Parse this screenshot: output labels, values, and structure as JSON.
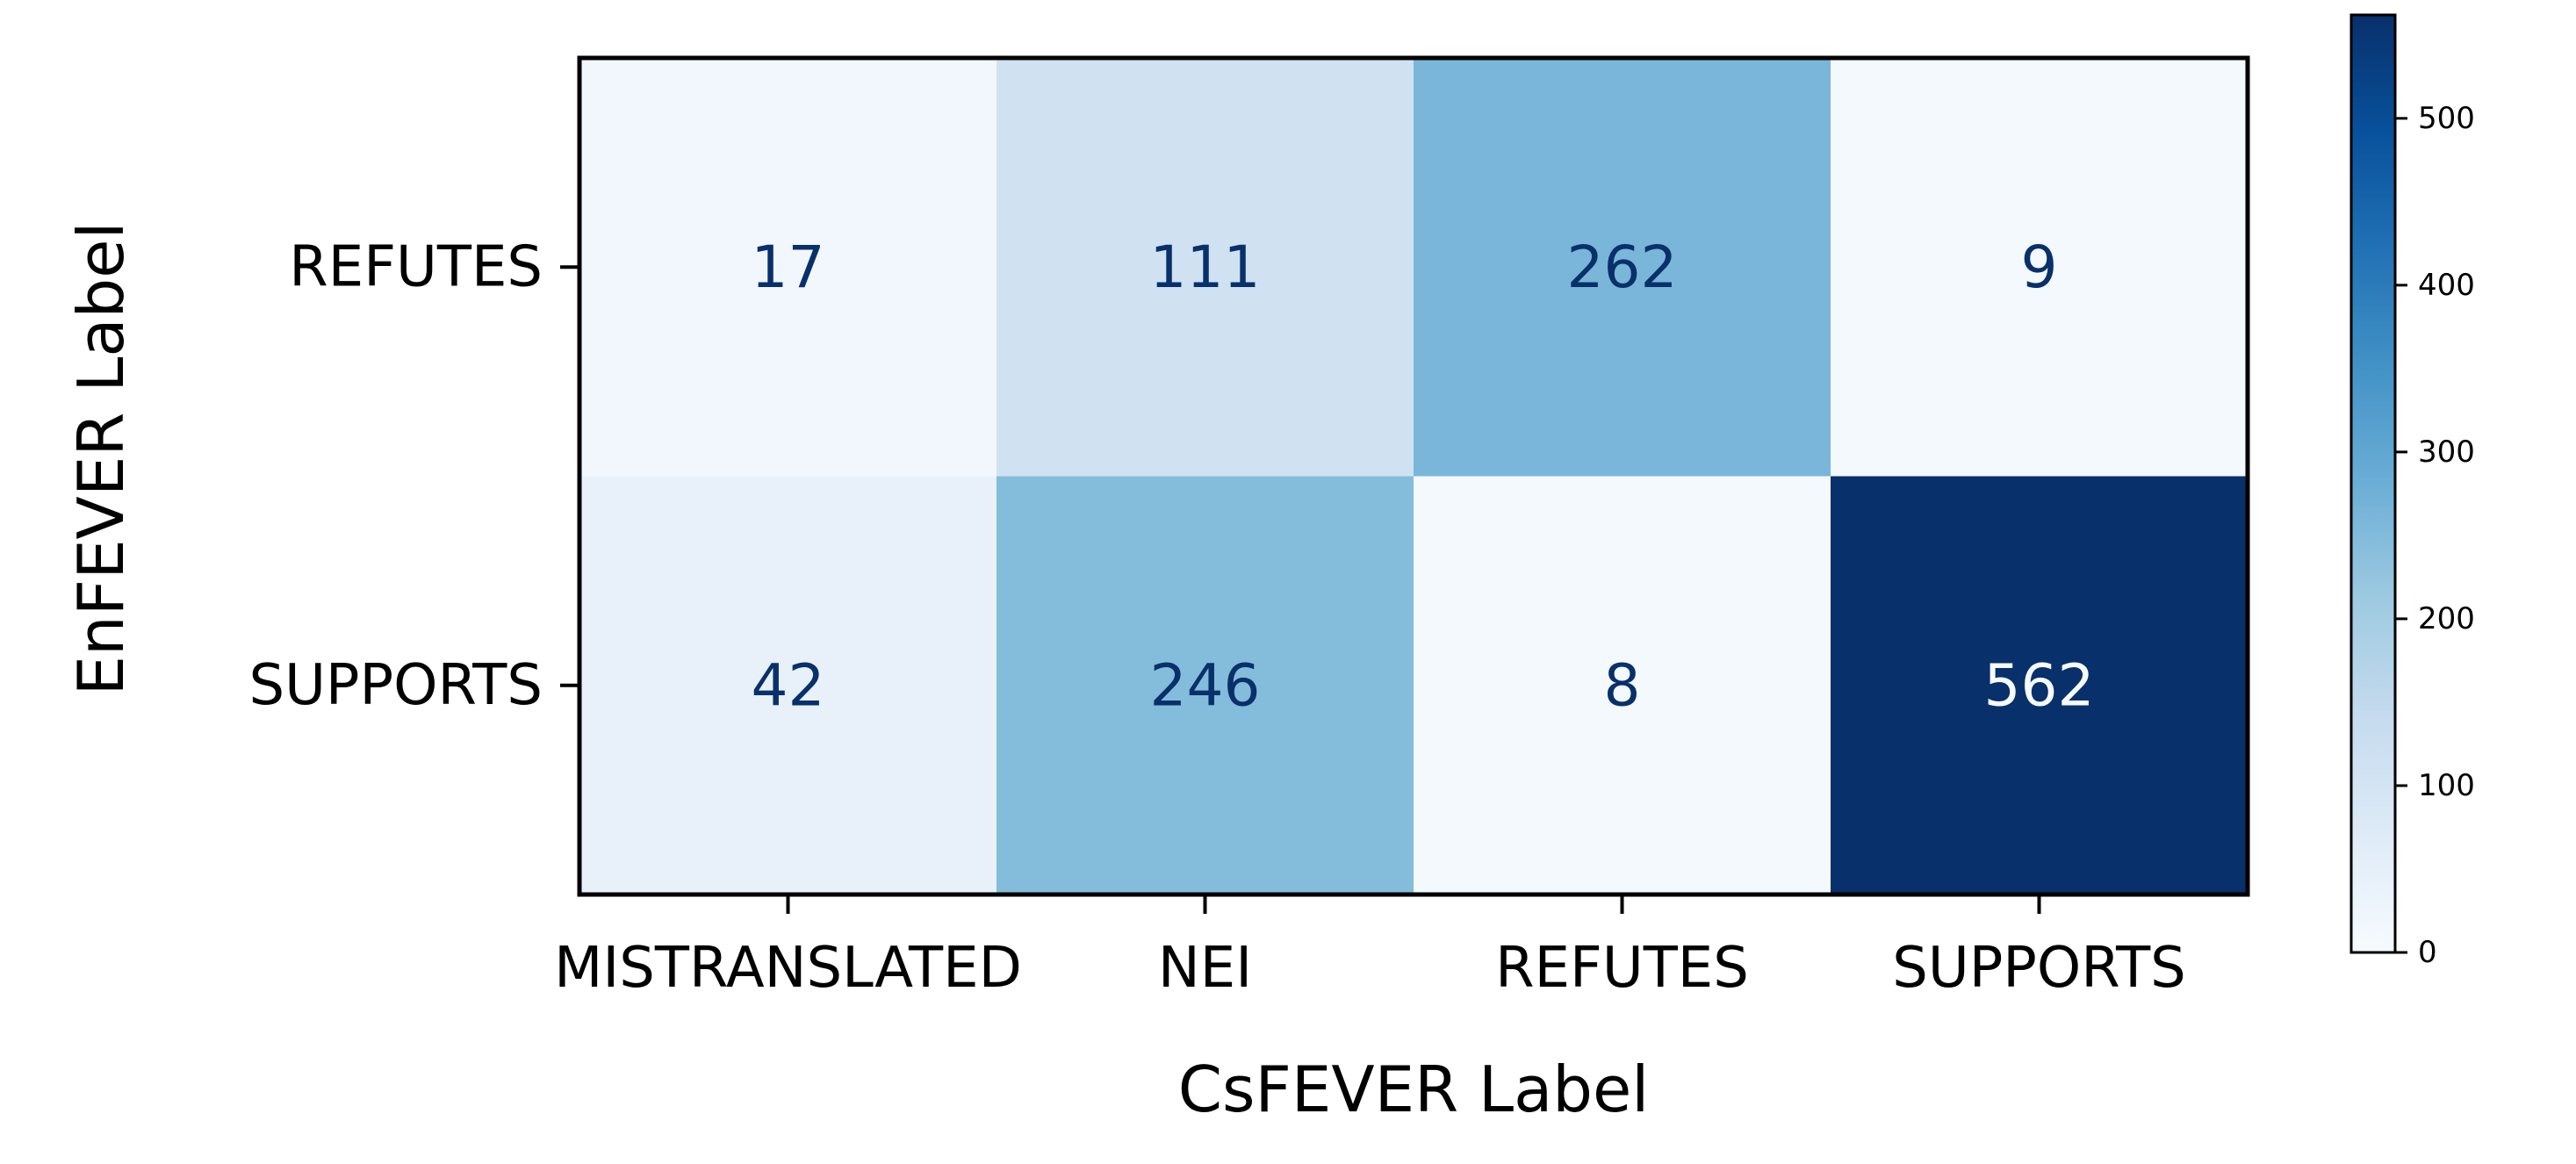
{
  "chart_data": {
    "type": "heatmap",
    "x_categories": [
      "MISTRANSLATED",
      "NEI",
      "REFUTES",
      "SUPPORTS"
    ],
    "y_categories": [
      "REFUTES",
      "SUPPORTS"
    ],
    "values": [
      [
        17,
        111,
        262,
        9
      ],
      [
        42,
        246,
        8,
        562
      ]
    ],
    "xlabel": "CsFEVER Label",
    "ylabel": "EnFEVER Label",
    "colormap": "Blues",
    "colorbar": {
      "range": [
        0,
        562
      ],
      "ticks": [
        0,
        100,
        200,
        300,
        400,
        500
      ]
    },
    "grid": false
  }
}
